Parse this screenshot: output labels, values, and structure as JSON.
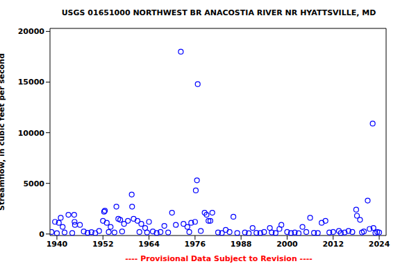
{
  "chart_data": {
    "type": "scatter",
    "title": "USGS 01651000 NORTHWEST BR ANACOSTIA RIVER NR HYATTSVILLE, MD",
    "subtitle": "---- Provisional Data Subject to Revision ----",
    "y_label": "Streamflow, in cubic feet per second",
    "x": [
      1938.6,
      1939.5,
      1940,
      1940.5,
      1941,
      1941.5,
      1942,
      1943,
      1944,
      1944.5,
      1944.6,
      1944.7,
      1946,
      1947,
      1948,
      1949,
      1950,
      1951,
      1952,
      1952.3,
      1952.5,
      1953,
      1953.5,
      1954,
      1955,
      1955.5,
      1956,
      1956.5,
      1957,
      1957.5,
      1958.5,
      1959.5,
      1959.6,
      1960,
      1961,
      1961.5,
      1962,
      1963,
      1963.5,
      1964,
      1965,
      1966,
      1967,
      1968,
      1969,
      1970,
      1971,
      1972.3,
      1973,
      1974,
      1974.5,
      1975,
      1976,
      1976.2,
      1976.5,
      1976.7,
      1977.5,
      1978.5,
      1979,
      1979.5,
      1980,
      1980.5,
      1982,
      1983,
      1984,
      1985,
      1986,
      1987,
      1989,
      1990,
      1991,
      1992,
      1993,
      1994,
      1995.5,
      1996,
      1997,
      1998,
      1998.5,
      2000,
      2001,
      2002,
      2003,
      2004,
      2005,
      2006,
      2007,
      2008,
      2009,
      2010,
      2011,
      2012,
      2013.5,
      2014,
      2015,
      2016,
      2017,
      2018,
      2018.2,
      2019,
      2019.5,
      2020,
      2021,
      2021.5,
      2022.3,
      2022.5,
      2023,
      2023.5,
      2024
    ],
    "values": [
      200,
      1200,
      80,
      1100,
      1600,
      700,
      150,
      1900,
      100,
      1900,
      1200,
      900,
      900,
      250,
      120,
      180,
      90,
      300,
      1300,
      2200,
      2300,
      1100,
      200,
      700,
      150,
      2700,
      1500,
      1400,
      250,
      1000,
      1300,
      3900,
      2700,
      1500,
      1300,
      200,
      1000,
      600,
      150,
      1200,
      250,
      100,
      200,
      800,
      150,
      2100,
      900,
      18000,
      1000,
      700,
      200,
      1100,
      1200,
      4300,
      5300,
      14800,
      300,
      2100,
      1900,
      1300,
      1300,
      2100,
      150,
      100,
      400,
      200,
      1700,
      100,
      150,
      80,
      600,
      120,
      100,
      200,
      600,
      150,
      100,
      500,
      900,
      200,
      100,
      150,
      80,
      700,
      200,
      1600,
      120,
      100,
      1100,
      1300,
      150,
      200,
      300,
      100,
      150,
      300,
      200,
      2400,
      1800,
      1400,
      150,
      250,
      3300,
      500,
      10900,
      600,
      100,
      200,
      150
    ],
    "color": "#0000ff",
    "marker": "circle",
    "xlim": [
      1938.2,
      2025.8
    ],
    "xticks": [
      1940,
      1952,
      1964,
      1976,
      1988,
      2000,
      2012,
      2024
    ],
    "ylim": [
      -150,
      20300
    ],
    "yticks": [
      0,
      5000,
      10000,
      15000,
      20000
    ],
    "grid": false
  }
}
